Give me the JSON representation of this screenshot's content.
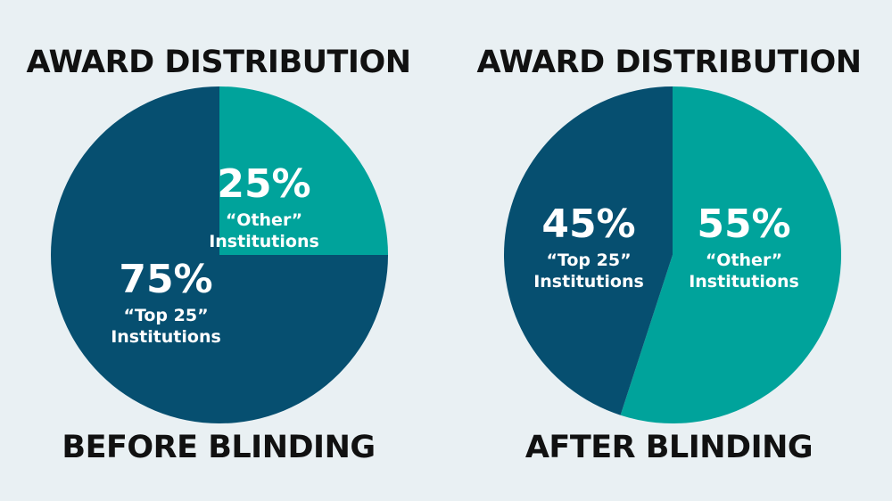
{
  "colors": {
    "background": "#e9f0f3",
    "teal": "#00a39b",
    "navy": "#064f70",
    "heading": "#111111",
    "label": "#ffffff"
  },
  "chart_data": [
    {
      "type": "pie",
      "title": "AWARD DISTRIBUTION",
      "subtitle": "BEFORE BLINDING",
      "slices": [
        {
          "label_line1": "“Other”",
          "label_line2": "Institutions",
          "value": 25,
          "value_label": "25%",
          "color": "#00a39b"
        },
        {
          "label_line1": "“Top 25”",
          "label_line2": "Institutions",
          "value": 75,
          "value_label": "75%",
          "color": "#064f70"
        }
      ]
    },
    {
      "type": "pie",
      "title": "AWARD DISTRIBUTION",
      "subtitle": "AFTER BLINDING",
      "slices": [
        {
          "label_line1": "“Other”",
          "label_line2": "Institutions",
          "value": 55,
          "value_label": "55%",
          "color": "#00a39b"
        },
        {
          "label_line1": "“Top 25”",
          "label_line2": "Institutions",
          "value": 45,
          "value_label": "45%",
          "color": "#064f70"
        }
      ]
    }
  ]
}
